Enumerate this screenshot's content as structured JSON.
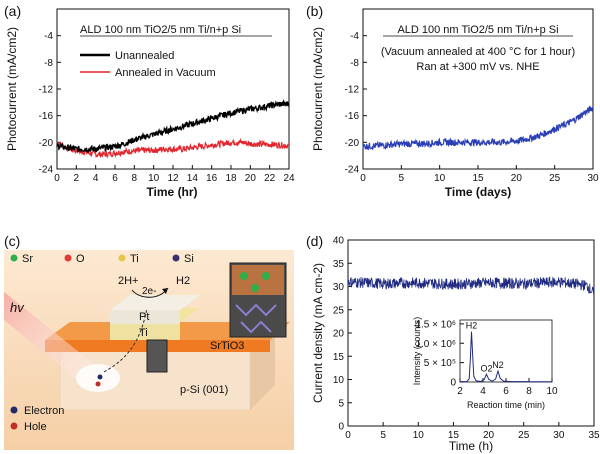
{
  "chart_data": [
    {
      "panel": "(a)",
      "type": "line",
      "title_lines": [
        "ALD 100 nm TiO2/5 nm Ti/n+p Si"
      ],
      "xlabel": "Time (hr)",
      "ylabel": "Photocurrent (mA/cm2)",
      "xlim": [
        0,
        24
      ],
      "ylim": [
        -24,
        0
      ],
      "xticks": [
        "0",
        "2",
        "4",
        "6",
        "8",
        "10",
        "12",
        "14",
        "16",
        "18",
        "20",
        "22",
        "24"
      ],
      "yticks": [
        "-4",
        "-8",
        "-12",
        "-16",
        "-20",
        "-24"
      ],
      "legend_placement": "upper-left",
      "series": [
        {
          "name": "Unannealed",
          "color": "#000000",
          "x": [
            0,
            1,
            2,
            3,
            4,
            5,
            6,
            7,
            8,
            9,
            10,
            11,
            12,
            13,
            14,
            15,
            16,
            17,
            18,
            19,
            20,
            21,
            22,
            23,
            24
          ],
          "y": [
            -20.5,
            -20.8,
            -21.0,
            -21.0,
            -21.0,
            -20.8,
            -20.6,
            -20.2,
            -19.6,
            -19.2,
            -18.8,
            -18.4,
            -18.0,
            -17.6,
            -17.2,
            -16.8,
            -16.4,
            -16.0,
            -15.6,
            -15.3,
            -15.0,
            -14.8,
            -14.5,
            -14.3,
            -14.2
          ]
        },
        {
          "name": "Annealed in Vacuum",
          "color": "#e0262e",
          "x": [
            0,
            1,
            2,
            3,
            4,
            5,
            6,
            7,
            8,
            9,
            10,
            11,
            12,
            13,
            14,
            15,
            16,
            17,
            18,
            19,
            20,
            21,
            22,
            23,
            24
          ],
          "y": [
            -20.0,
            -20.8,
            -21.2,
            -21.5,
            -21.8,
            -21.8,
            -21.6,
            -21.4,
            -21.3,
            -21.2,
            -21.2,
            -21.0,
            -21.0,
            -21.0,
            -20.8,
            -20.6,
            -20.4,
            -20.2,
            -20.0,
            -20.0,
            -20.2,
            -20.3,
            -20.3,
            -20.4,
            -20.5
          ]
        }
      ]
    },
    {
      "panel": "(b)",
      "type": "line",
      "title_lines": [
        "ALD 100 nm TiO2/5 nm Ti/n+p Si",
        "(Vacuum annealed at 400 °C for 1 hour)",
        "Ran at +300 mV vs. NHE"
      ],
      "xlabel": "Time (days)",
      "ylabel": "Photocurrent (mA/cm2)",
      "xlim": [
        0,
        30
      ],
      "ylim": [
        -24,
        0
      ],
      "xticks": [
        "0",
        "5",
        "10",
        "15",
        "20",
        "25",
        "30"
      ],
      "yticks": [
        "-4",
        "-8",
        "-12",
        "-16",
        "-20",
        "-24"
      ],
      "series": [
        {
          "name": "",
          "color": "#2a3fb5",
          "x": [
            0,
            2,
            4,
            6,
            8,
            10,
            12,
            14,
            16,
            18,
            20,
            21,
            22,
            23,
            24,
            25,
            26,
            27,
            28,
            29,
            30
          ],
          "y": [
            -20.6,
            -20.5,
            -20.3,
            -20.2,
            -20.2,
            -20.0,
            -20.0,
            -20.0,
            -20.0,
            -20.0,
            -19.8,
            -19.6,
            -19.3,
            -19.0,
            -18.5,
            -18.0,
            -17.5,
            -17.0,
            -16.3,
            -15.5,
            -14.8
          ]
        }
      ]
    },
    {
      "panel": "(d)",
      "type": "line",
      "xlabel": "Time (h)",
      "ylabel": "Current density (mA cm-2)",
      "xlim": [
        0,
        35
      ],
      "ylim": [
        0,
        40
      ],
      "xticks": [
        "0",
        "5",
        "10",
        "15",
        "20",
        "25",
        "30",
        "35"
      ],
      "yticks": [
        "0",
        "5",
        "10",
        "15",
        "20",
        "25",
        "30",
        "35",
        "40"
      ],
      "series": [
        {
          "name": "",
          "color": "#1f2a80",
          "x": [
            0,
            5,
            10,
            15,
            20,
            25,
            30,
            34,
            35
          ],
          "y": [
            31.0,
            30.6,
            30.8,
            30.5,
            30.8,
            30.6,
            31.0,
            30.2,
            28.5
          ]
        }
      ],
      "inset": {
        "type": "line",
        "xlabel": "Reaction time (min)",
        "ylabel": "Intensity (counts)",
        "xlim": [
          2,
          10
        ],
        "ylim": [
          0,
          1600000.0
        ],
        "xticks": [
          "2",
          "4",
          "6",
          "8",
          "10"
        ],
        "ytick_labels": [
          "0",
          "5 × 10⁵",
          "1.0 × 10⁶",
          "1.5 × 10⁶"
        ],
        "ytick_values": [
          0,
          500000,
          1000000,
          1500000
        ],
        "peak_labels": [
          {
            "text": "H2",
            "x": 3.0
          },
          {
            "text": "O2",
            "x": 4.3
          },
          {
            "text": "N2",
            "x": 5.3
          }
        ],
        "series": [
          {
            "name": "",
            "color": "#1f2a80",
            "x": [
              2.0,
              2.6,
              2.8,
              2.9,
              3.0,
              3.1,
              3.2,
              3.4,
              3.8,
              4.1,
              4.3,
              4.5,
              4.8,
              5.1,
              5.3,
              5.5,
              5.8,
              6.5,
              8,
              10
            ],
            "y": [
              10000,
              10000,
              80000,
              600000,
              1300000,
              700000,
              150000,
              30000,
              15000,
              60000,
              200000,
              70000,
              20000,
              80000,
              280000,
              90000,
              20000,
              10000,
              8000,
              8000
            ]
          }
        ]
      }
    }
  ],
  "figure": {
    "panel_a": "(a)",
    "panel_b": "(b)",
    "panel_c": "(c)",
    "panel_d": "(d)",
    "schematic": {
      "legend": [
        {
          "label": "Sr",
          "color": "#2fae4a"
        },
        {
          "label": "O",
          "color": "#e23b3b"
        },
        {
          "label": "Ti",
          "color": "#e3c64a"
        },
        {
          "label": "Si",
          "color": "#3b2f6e"
        }
      ],
      "reaction_left": "2H+",
      "reaction_e": "2e-",
      "reaction_right": "H2",
      "light": "hv",
      "layer_pt": "Pt",
      "layer_ti": "Ti",
      "layer_srtio3": "SrTiO3",
      "substrate": "p-Si (001)",
      "carriers": [
        {
          "label": "Electron",
          "color": "#1f2a6b"
        },
        {
          "label": "Hole",
          "color": "#c0302b"
        }
      ]
    }
  }
}
